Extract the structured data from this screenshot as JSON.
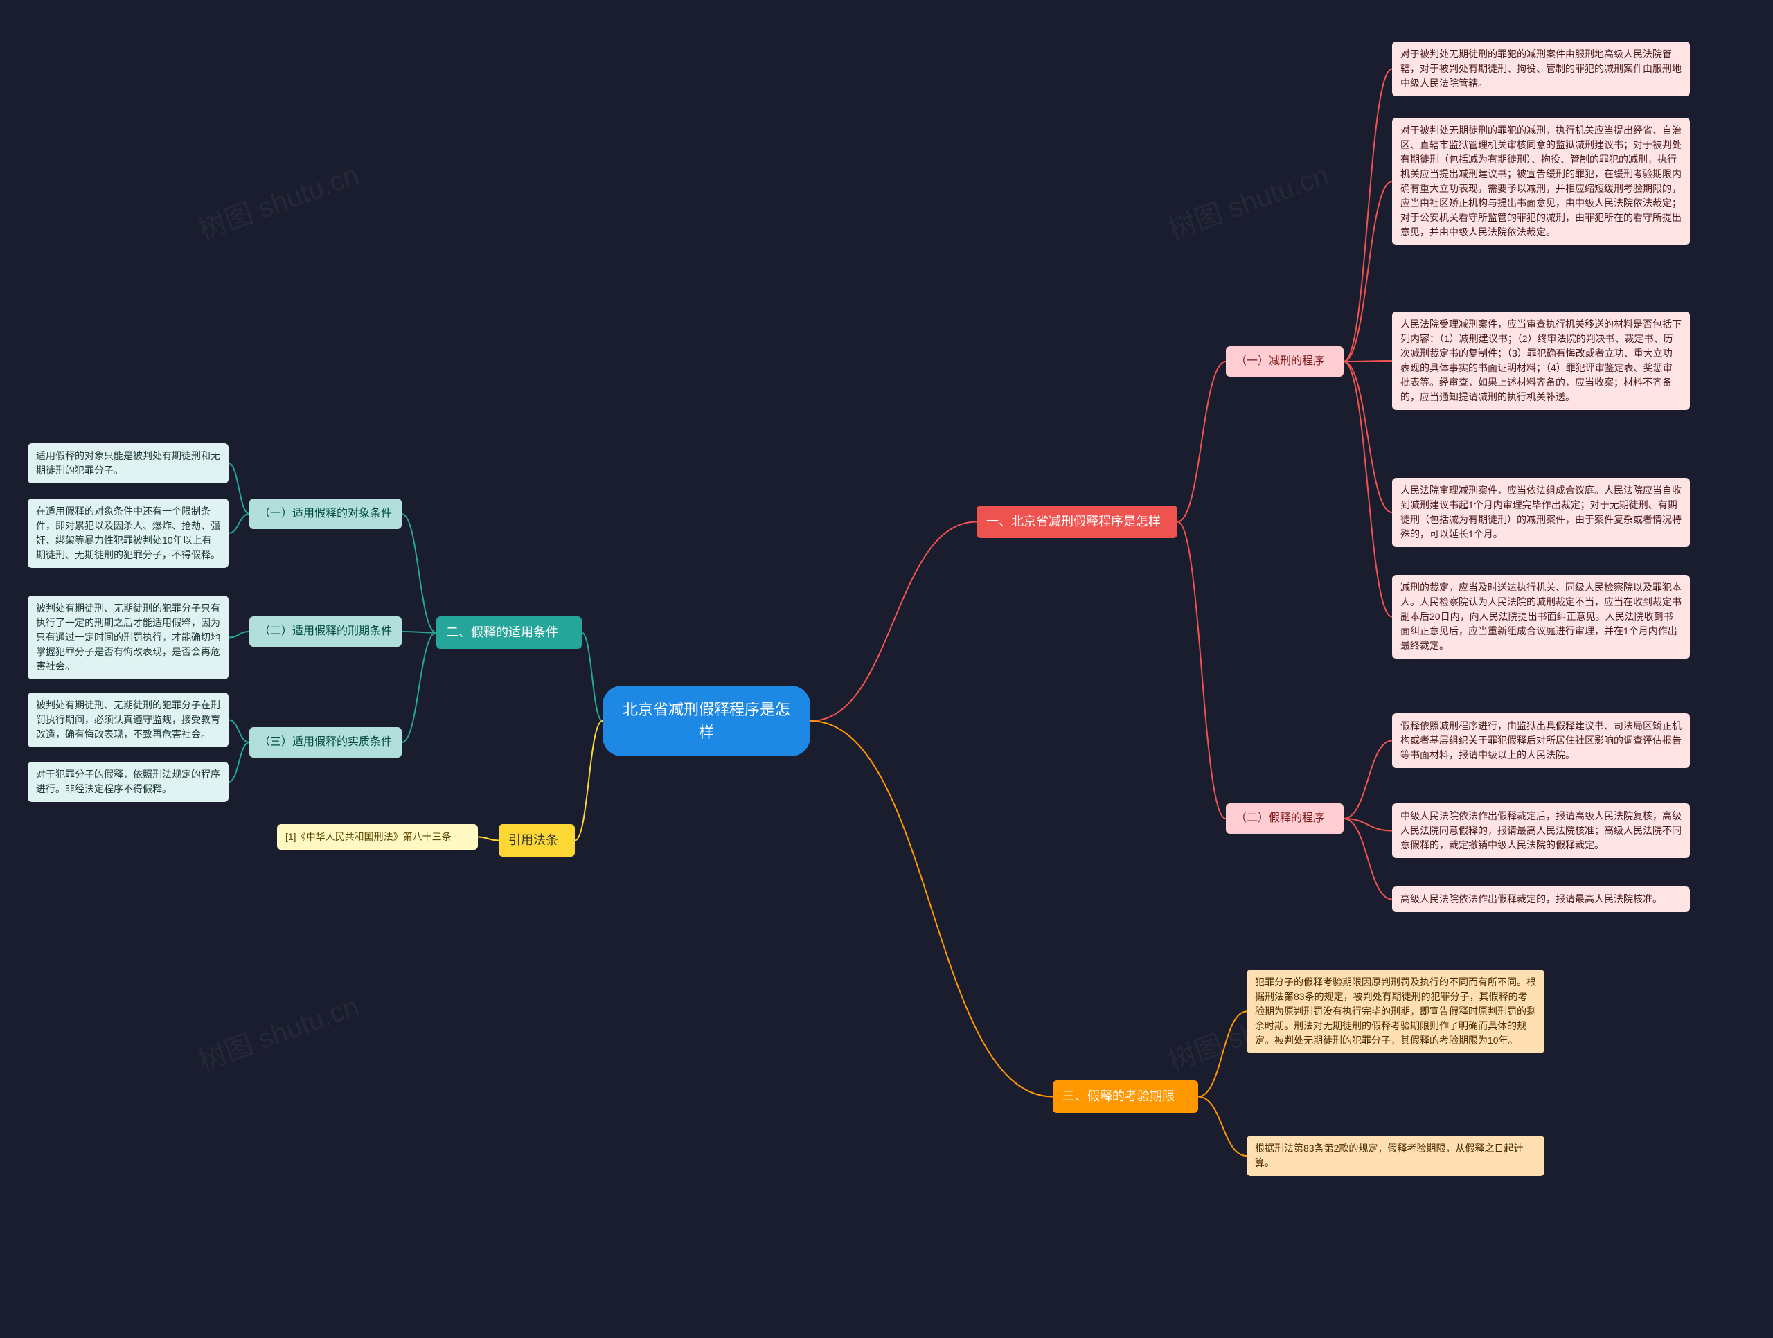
{
  "root": {
    "label": "北京省减刑假释程序是怎\n样",
    "bg": "#1e88e5",
    "fg": "#ffffff"
  },
  "branches": {
    "b1": {
      "label": "一、北京省减刑假释程序是怎样",
      "cat_bg": "#ef5350",
      "cat_fg": "#ffffff",
      "sub_bg": "#ffcdd2",
      "sub_fg": "#7f1d1d",
      "leaf_bg": "#ffe4e6",
      "leaf_fg": "#4a1a1a",
      "line": "#ef5350",
      "subs": {
        "s1": {
          "label": "（一）减刑的程序",
          "leaves": [
            "对于被判处无期徒刑的罪犯的减刑案件由服刑地高级人民法院管辖，对于被判处有期徒刑、拘役、管制的罪犯的减刑案件由服刑地中级人民法院管辖。",
            "对于被判处无期徒刑的罪犯的减刑，执行机关应当提出经省、自治区、直辖市监狱管理机关审核同意的监狱减刑建议书；对于被判处有期徒刑（包括减为有期徒刑）、拘役、管制的罪犯的减刑，执行机关应当提出减刑建议书；被宣告缓刑的罪犯，在缓刑考验期限内确有重大立功表现，需要予以减刑，并相应缩短缓刑考验期限的，应当由社区矫正机构与提出书面意见，由中级人民法院依法裁定；对于公安机关看守所监管的罪犯的减刑，由罪犯所在的看守所提出意见，并由中级人民法院依法裁定。",
            "人民法院受理减刑案件，应当审查执行机关移送的材料是否包括下列内容：（1）减刑建议书；（2）终审法院的判决书、裁定书、历次减刑裁定书的复制件；（3）罪犯确有悔改或者立功、重大立功表现的具体事实的书面证明材料；（4）罪犯评审鉴定表、奖惩审批表等。经审查，如果上述材料齐备的，应当收案；材料不齐备的，应当通知提请减刑的执行机关补送。",
            "人民法院审理减刑案件，应当依法组成合议庭。人民法院应当自收到减刑建议书起1个月内审理完毕作出裁定；对于无期徒刑、有期徒刑（包括减为有期徒刑）的减刑案件，由于案件复杂或者情况特殊的，可以延长1个月。",
            "减刑的裁定，应当及时送达执行机关、同级人民检察院以及罪犯本人。人民检察院认为人民法院的减刑裁定不当，应当在收到裁定书副本后20日内，向人民法院提出书面纠正意见。人民法院收到书面纠正意见后，应当重新组成合议庭进行审理，并在1个月内作出最终裁定。"
          ]
        },
        "s2": {
          "label": "（二）假释的程序",
          "leaves": [
            "假释依照减刑程序进行，由监狱出具假释建议书、司法局区矫正机构或者基层组织关于罪犯假释后对所居住社区影响的调查评估报告等书面材料，报请中级以上的人民法院。",
            "中级人民法院依法作出假释裁定后，报请高级人民法院复核，高级人民法院同意假释的，报请最高人民法院核准；高级人民法院不同意假释的，裁定撤销中级人民法院的假释裁定。",
            "高级人民法院依法作出假释裁定的，报请最高人民法院核准。"
          ]
        }
      }
    },
    "b2": {
      "label": "二、假释的适用条件",
      "cat_bg": "#26a69a",
      "cat_fg": "#ffffff",
      "sub_bg": "#b2dfdb",
      "sub_fg": "#004d40",
      "leaf_bg": "#e0f2f1",
      "leaf_fg": "#1b3a36",
      "line": "#26a69a",
      "subs": {
        "s1": {
          "label": "（一）适用假释的对象条件",
          "leaves": [
            "适用假释的对象只能是被判处有期徒刑和无期徒刑的犯罪分子。",
            "在适用假释的对象条件中还有一个限制条件，即对累犯以及因杀人、爆炸、抢劫、强奸、绑架等暴力性犯罪被判处10年以上有期徒刑、无期徒刑的犯罪分子，不得假释。"
          ]
        },
        "s2": {
          "label": "（二）适用假释的刑期条件",
          "leaves": [
            "被判处有期徒刑、无期徒刑的犯罪分子只有执行了一定的刑期之后才能适用假释，因为只有通过一定时间的刑罚执行，才能确切地掌握犯罪分子是否有悔改表现，是否会再危害社会。"
          ]
        },
        "s3": {
          "label": "（三）适用假释的实质条件",
          "leaves": [
            "被判处有期徒刑、无期徒刑的犯罪分子在刑罚执行期间，必须认真遵守监规，接受教育改造，确有悔改表现，不致再危害社会。",
            "对于犯罪分子的假释，依照刑法规定的程序进行。非经法定程序不得假释。"
          ]
        }
      }
    },
    "b3": {
      "label": "三、假释的考验期限",
      "cat_bg": "#ff9800",
      "cat_fg": "#ffffff",
      "sub_bg": "",
      "sub_fg": "",
      "leaf_bg": "#ffe0b2",
      "leaf_fg": "#4a2c00",
      "line": "#ff9800",
      "leaves": [
        "犯罪分子的假释考验期限因原判刑罚及执行的不同而有所不同。根据刑法第83条的规定，被判处有期徒刑的犯罪分子，其假释的考验期为原判刑罚没有执行完毕的刑期，即宣告假释时原判刑罚的剩余时期。刑法对无期徒刑的假释考验期限则作了明确而具体的规定。被判处无期徒刑的犯罪分子，其假释的考验期限为10年。",
        "根据刑法第83条第2款的规定，假释考验期限，从假释之日起计算。"
      ]
    },
    "b4": {
      "label": "引用法条",
      "cat_bg": "#fdd835",
      "cat_fg": "#333333",
      "leaf_bg": "#fff9c4",
      "leaf_fg": "#5d4a00",
      "line": "#fdd835",
      "leaves": [
        "[1]《中华人民共和国刑法》第八十三条"
      ]
    }
  },
  "watermark": "树图 shutu.cn"
}
